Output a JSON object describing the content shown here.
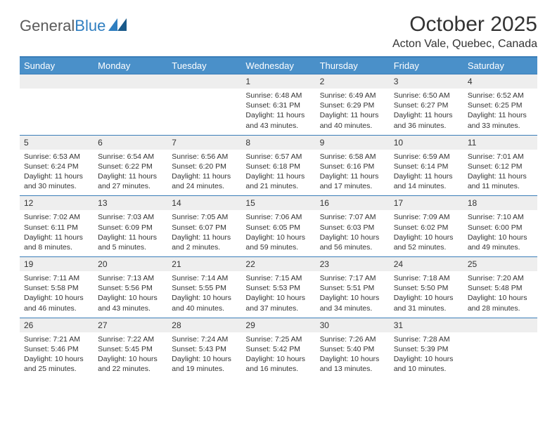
{
  "brand": {
    "part1": "General",
    "part2": "Blue"
  },
  "title": "October 2025",
  "location": "Acton Vale, Quebec, Canada",
  "colors": {
    "header_bg": "#4a90c9",
    "header_text": "#ffffff",
    "border": "#3a7db8",
    "daynum_bg": "#eeeeee",
    "text": "#333333",
    "logo_gray": "#5a5a5a",
    "logo_blue": "#2f7ec0"
  },
  "day_names": [
    "Sunday",
    "Monday",
    "Tuesday",
    "Wednesday",
    "Thursday",
    "Friday",
    "Saturday"
  ],
  "weeks": [
    [
      null,
      null,
      null,
      {
        "n": "1",
        "sunrise": "6:48 AM",
        "sunset": "6:31 PM",
        "daylight": "11 hours and 43 minutes."
      },
      {
        "n": "2",
        "sunrise": "6:49 AM",
        "sunset": "6:29 PM",
        "daylight": "11 hours and 40 minutes."
      },
      {
        "n": "3",
        "sunrise": "6:50 AM",
        "sunset": "6:27 PM",
        "daylight": "11 hours and 36 minutes."
      },
      {
        "n": "4",
        "sunrise": "6:52 AM",
        "sunset": "6:25 PM",
        "daylight": "11 hours and 33 minutes."
      }
    ],
    [
      {
        "n": "5",
        "sunrise": "6:53 AM",
        "sunset": "6:24 PM",
        "daylight": "11 hours and 30 minutes."
      },
      {
        "n": "6",
        "sunrise": "6:54 AM",
        "sunset": "6:22 PM",
        "daylight": "11 hours and 27 minutes."
      },
      {
        "n": "7",
        "sunrise": "6:56 AM",
        "sunset": "6:20 PM",
        "daylight": "11 hours and 24 minutes."
      },
      {
        "n": "8",
        "sunrise": "6:57 AM",
        "sunset": "6:18 PM",
        "daylight": "11 hours and 21 minutes."
      },
      {
        "n": "9",
        "sunrise": "6:58 AM",
        "sunset": "6:16 PM",
        "daylight": "11 hours and 17 minutes."
      },
      {
        "n": "10",
        "sunrise": "6:59 AM",
        "sunset": "6:14 PM",
        "daylight": "11 hours and 14 minutes."
      },
      {
        "n": "11",
        "sunrise": "7:01 AM",
        "sunset": "6:12 PM",
        "daylight": "11 hours and 11 minutes."
      }
    ],
    [
      {
        "n": "12",
        "sunrise": "7:02 AM",
        "sunset": "6:11 PM",
        "daylight": "11 hours and 8 minutes."
      },
      {
        "n": "13",
        "sunrise": "7:03 AM",
        "sunset": "6:09 PM",
        "daylight": "11 hours and 5 minutes."
      },
      {
        "n": "14",
        "sunrise": "7:05 AM",
        "sunset": "6:07 PM",
        "daylight": "11 hours and 2 minutes."
      },
      {
        "n": "15",
        "sunrise": "7:06 AM",
        "sunset": "6:05 PM",
        "daylight": "10 hours and 59 minutes."
      },
      {
        "n": "16",
        "sunrise": "7:07 AM",
        "sunset": "6:03 PM",
        "daylight": "10 hours and 56 minutes."
      },
      {
        "n": "17",
        "sunrise": "7:09 AM",
        "sunset": "6:02 PM",
        "daylight": "10 hours and 52 minutes."
      },
      {
        "n": "18",
        "sunrise": "7:10 AM",
        "sunset": "6:00 PM",
        "daylight": "10 hours and 49 minutes."
      }
    ],
    [
      {
        "n": "19",
        "sunrise": "7:11 AM",
        "sunset": "5:58 PM",
        "daylight": "10 hours and 46 minutes."
      },
      {
        "n": "20",
        "sunrise": "7:13 AM",
        "sunset": "5:56 PM",
        "daylight": "10 hours and 43 minutes."
      },
      {
        "n": "21",
        "sunrise": "7:14 AM",
        "sunset": "5:55 PM",
        "daylight": "10 hours and 40 minutes."
      },
      {
        "n": "22",
        "sunrise": "7:15 AM",
        "sunset": "5:53 PM",
        "daylight": "10 hours and 37 minutes."
      },
      {
        "n": "23",
        "sunrise": "7:17 AM",
        "sunset": "5:51 PM",
        "daylight": "10 hours and 34 minutes."
      },
      {
        "n": "24",
        "sunrise": "7:18 AM",
        "sunset": "5:50 PM",
        "daylight": "10 hours and 31 minutes."
      },
      {
        "n": "25",
        "sunrise": "7:20 AM",
        "sunset": "5:48 PM",
        "daylight": "10 hours and 28 minutes."
      }
    ],
    [
      {
        "n": "26",
        "sunrise": "7:21 AM",
        "sunset": "5:46 PM",
        "daylight": "10 hours and 25 minutes."
      },
      {
        "n": "27",
        "sunrise": "7:22 AM",
        "sunset": "5:45 PM",
        "daylight": "10 hours and 22 minutes."
      },
      {
        "n": "28",
        "sunrise": "7:24 AM",
        "sunset": "5:43 PM",
        "daylight": "10 hours and 19 minutes."
      },
      {
        "n": "29",
        "sunrise": "7:25 AM",
        "sunset": "5:42 PM",
        "daylight": "10 hours and 16 minutes."
      },
      {
        "n": "30",
        "sunrise": "7:26 AM",
        "sunset": "5:40 PM",
        "daylight": "10 hours and 13 minutes."
      },
      {
        "n": "31",
        "sunrise": "7:28 AM",
        "sunset": "5:39 PM",
        "daylight": "10 hours and 10 minutes."
      },
      null
    ]
  ],
  "labels": {
    "sunrise": "Sunrise:",
    "sunset": "Sunset:",
    "daylight": "Daylight:"
  }
}
